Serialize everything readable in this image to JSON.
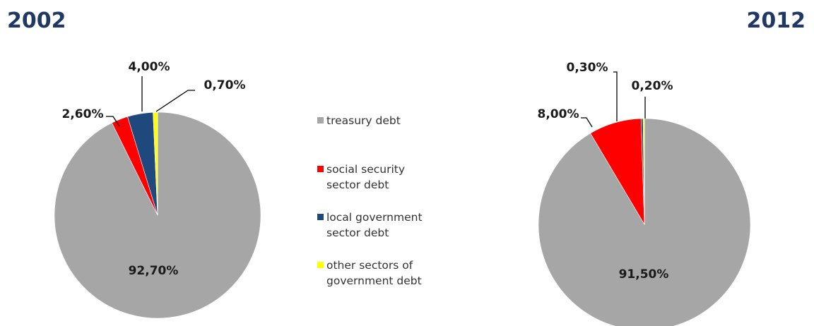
{
  "chart_data": [
    {
      "type": "pie",
      "title": "2002",
      "categories": [
        "treasury debt",
        "social security sector debt",
        "local government sector debt",
        "other sectors of government debt"
      ],
      "values": [
        92.7,
        2.6,
        4.0,
        0.7
      ],
      "labels": [
        "92,70%",
        "2,60%",
        "4,00%",
        "0,70%"
      ],
      "colors": [
        "#a6a6a6",
        "#ff0000",
        "#1f497d",
        "#ffff00"
      ],
      "legend": "right"
    },
    {
      "type": "pie",
      "title": "2012",
      "categories": [
        "treasury debt",
        "social security sector debt",
        "local government sector debt",
        "other sectors of government debt"
      ],
      "values": [
        91.5,
        8.0,
        0.3,
        0.2
      ],
      "labels": [
        "91,50%",
        "8,00%",
        "0,30%",
        "0,20%"
      ],
      "colors": [
        "#a6a6a6",
        "#ff0000",
        "#1f497d",
        "#ffff00"
      ],
      "legend": "right"
    }
  ],
  "legend": {
    "items": [
      {
        "label_line1": "treasury debt",
        "label_line2": "",
        "color": "#a6a6a6"
      },
      {
        "label_line1": "social security",
        "label_line2": "sector debt",
        "color": "#ff0000"
      },
      {
        "label_line1": "local government",
        "label_line2": "sector debt",
        "color": "#1f497d"
      },
      {
        "label_line1": "other sectors of",
        "label_line2": "government debt",
        "color": "#ffff00"
      }
    ]
  }
}
